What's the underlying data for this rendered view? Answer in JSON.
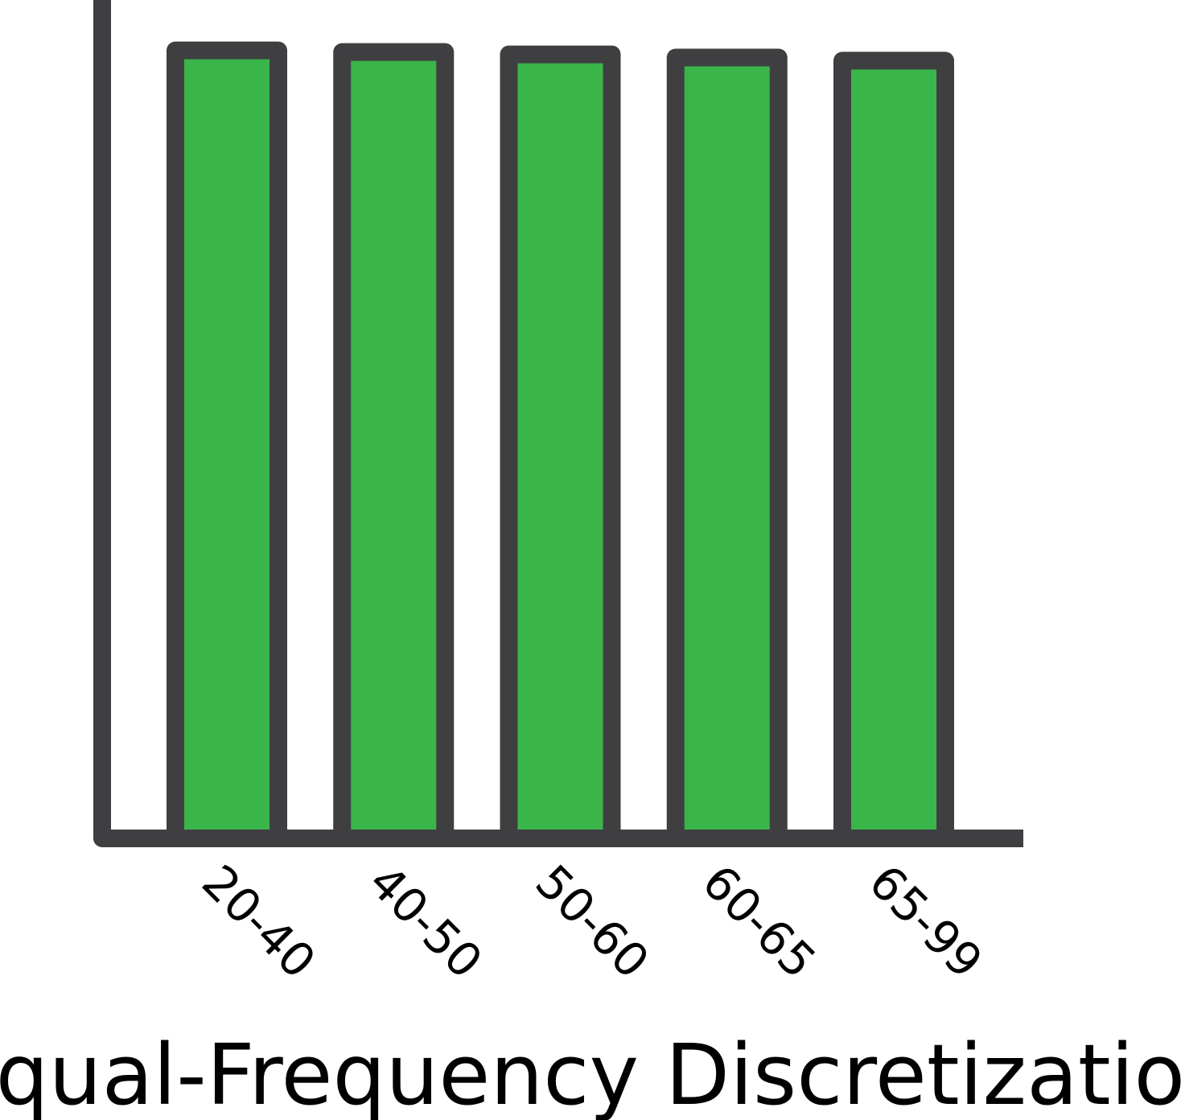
{
  "chart_data": {
    "type": "bar",
    "title": "Equal-Frequency Discretization",
    "xlabel": "",
    "ylabel": "",
    "categories": [
      "20-40",
      "40-50",
      "50-60",
      "60-65",
      "65-99"
    ],
    "values": [
      1.0,
      0.998,
      0.995,
      0.991,
      0.987
    ],
    "ylim": [
      0,
      1.064
    ],
    "grid": false,
    "y_ticks_shown": false,
    "colors": {
      "bar_fill": "#3ab54a",
      "bar_stroke": "#3f3f42",
      "axis": "#3f3f42"
    }
  }
}
